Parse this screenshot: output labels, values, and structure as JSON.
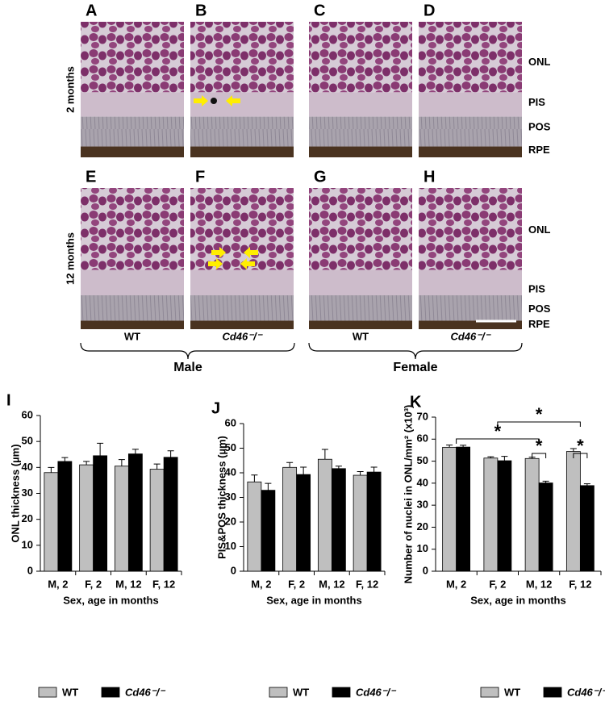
{
  "figure": {
    "panels": [
      "A",
      "B",
      "C",
      "D",
      "E",
      "F",
      "G",
      "H"
    ],
    "rows": [
      "2 months",
      "12 months"
    ],
    "layers": [
      [
        "ONL",
        "PIS",
        "POS",
        "RPE"
      ],
      [
        "ONL",
        "PIS",
        "POS",
        "RPE"
      ]
    ],
    "columns": [
      "WT",
      "Cd46⁻/⁻",
      "WT",
      "Cd46⁻/⁻"
    ],
    "groups": [
      "Male",
      "Female"
    ]
  },
  "chart_data": [
    {
      "type": "bar",
      "label": "I",
      "ylabel": "ONL thickness (µm)",
      "xlabel": "Sex, age in months",
      "categories": [
        "M, 2",
        "F, 2",
        "M, 12",
        "F, 12"
      ],
      "series": [
        {
          "name": "WT",
          "color": "#bfbfbf",
          "values": [
            38,
            41,
            40.5,
            39.3
          ],
          "errors": [
            2,
            1.3,
            2.5,
            2
          ]
        },
        {
          "name": "Cd46⁻/⁻",
          "color": "#000000",
          "values": [
            42.3,
            44.5,
            45.2,
            43.9
          ],
          "errors": [
            1.5,
            4.8,
            1.8,
            2.5
          ]
        }
      ],
      "ylim": [
        0,
        60
      ],
      "yticks": [
        0,
        10,
        20,
        30,
        40,
        50,
        60
      ],
      "legend": "bottom"
    },
    {
      "type": "bar",
      "label": "J",
      "ylabel": "PIS&POS thickness (µm)",
      "xlabel": "Sex, age in months",
      "categories": [
        "M, 2",
        "F, 2",
        "M, 12",
        "F, 12"
      ],
      "series": [
        {
          "name": "WT",
          "color": "#bfbfbf",
          "values": [
            36.3,
            42.2,
            45.5,
            39
          ],
          "errors": [
            2.8,
            2,
            4,
            1.5
          ]
        },
        {
          "name": "Cd46⁻/⁻",
          "color": "#000000",
          "values": [
            32.9,
            39.3,
            41.7,
            40.3
          ],
          "errors": [
            2.8,
            3,
            1,
            2
          ]
        }
      ],
      "ylim": [
        0,
        60
      ],
      "yticks": [
        0,
        10,
        20,
        30,
        40,
        50,
        60
      ],
      "legend": "bottom"
    },
    {
      "type": "bar",
      "label": "K",
      "ylabel": "Number of nuclei in ONL/mm² (x10³)",
      "xlabel": "Sex, age in months",
      "categories": [
        "M, 2",
        "F, 2",
        "M, 12",
        "F, 12"
      ],
      "series": [
        {
          "name": "WT",
          "color": "#bfbfbf",
          "values": [
            56.3,
            51.4,
            51.2,
            54.4
          ],
          "errors": [
            1,
            0.6,
            0.6,
            1.3
          ]
        },
        {
          "name": "Cd46⁻/⁻",
          "color": "#000000",
          "values": [
            56.4,
            50.2,
            40.1,
            38.9
          ],
          "errors": [
            0.8,
            2,
            0.8,
            0.8
          ]
        }
      ],
      "ylim": [
        0,
        70
      ],
      "yticks": [
        0,
        10,
        20,
        30,
        40,
        50,
        60,
        70
      ],
      "legend": "bottom",
      "annotations": [
        "*",
        "*",
        "*",
        "*"
      ]
    }
  ]
}
